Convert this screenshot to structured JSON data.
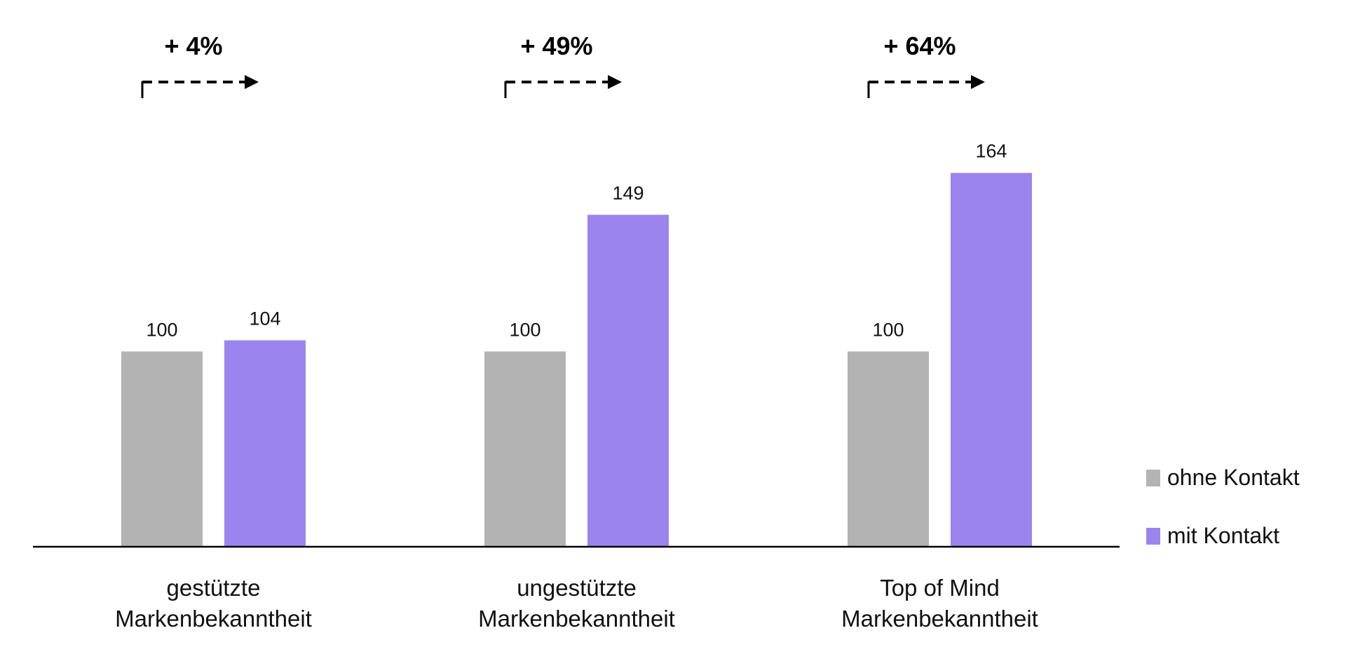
{
  "chart_data": {
    "type": "bar",
    "categories": [
      [
        "gestützte",
        "Markenbekanntheit"
      ],
      [
        "ungestützte",
        "Markenbekanntheit"
      ],
      [
        "Top of Mind",
        "Markenbekanntheit"
      ]
    ],
    "series": [
      {
        "name": "ohne Kontakt",
        "values": [
          100,
          100,
          100
        ],
        "color": "#b3b3b3"
      },
      {
        "name": "mit Kontakt",
        "values": [
          104,
          149,
          164
        ],
        "color": "#9b84ee"
      }
    ],
    "data_labels": [
      [
        "100",
        "100",
        "100"
      ],
      [
        "104",
        "149",
        "164"
      ]
    ],
    "annotations": [
      "+ 4%",
      "+ 49%",
      "+ 64%"
    ],
    "ylim": [
      30,
      200
    ],
    "grid": false,
    "legend": "right"
  }
}
